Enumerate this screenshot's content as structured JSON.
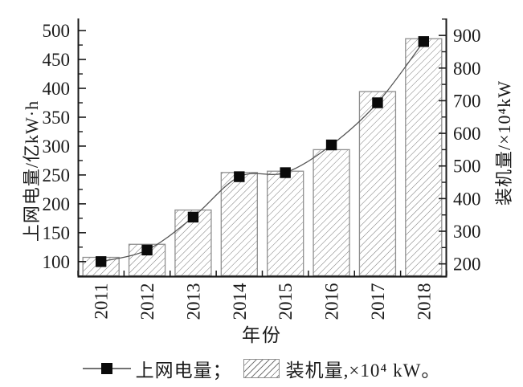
{
  "chart_data": {
    "type": "combo-bar-line",
    "categories": [
      "2011",
      "2012",
      "2013",
      "2014",
      "2015",
      "2016",
      "2017",
      "2018"
    ],
    "series": [
      {
        "name": "上网电量",
        "type": "line",
        "axis": "left",
        "marker": "filled-square",
        "values": [
          100,
          120,
          177,
          247,
          254,
          302,
          375,
          481
        ]
      },
      {
        "name": "装机量",
        "type": "bar",
        "axis": "right",
        "hatch": "diagonal-forward",
        "values": [
          220,
          260,
          365,
          480,
          484,
          550,
          728,
          890
        ]
      }
    ],
    "x_axis": {
      "label": "年份"
    },
    "left_axis": {
      "label": "上网电量/亿kW·h",
      "tick_min": 100,
      "tick_max": 500,
      "tick_step": 50,
      "minor_step": 25,
      "range": [
        74,
        521
      ]
    },
    "right_axis": {
      "label": "装机量/×10⁴kW",
      "tick_min": 200,
      "tick_max": 900,
      "tick_step": 100,
      "minor_step": 50,
      "range": [
        161,
        952
      ]
    },
    "legend": {
      "position": "bottom",
      "items": [
        {
          "label": "上网电量；",
          "type": "line-marker"
        },
        {
          "label": "装机量,×10⁴ kW。",
          "type": "hatch-swatch"
        }
      ]
    },
    "grid": false
  },
  "colors": {
    "background": "#ffffff",
    "text": "#1a1a1a",
    "spine": "#1a1a1a",
    "line": "#555555",
    "marker": "#0a0a0a",
    "bar_border": "#8f8f8f",
    "hatch": "#777777"
  }
}
